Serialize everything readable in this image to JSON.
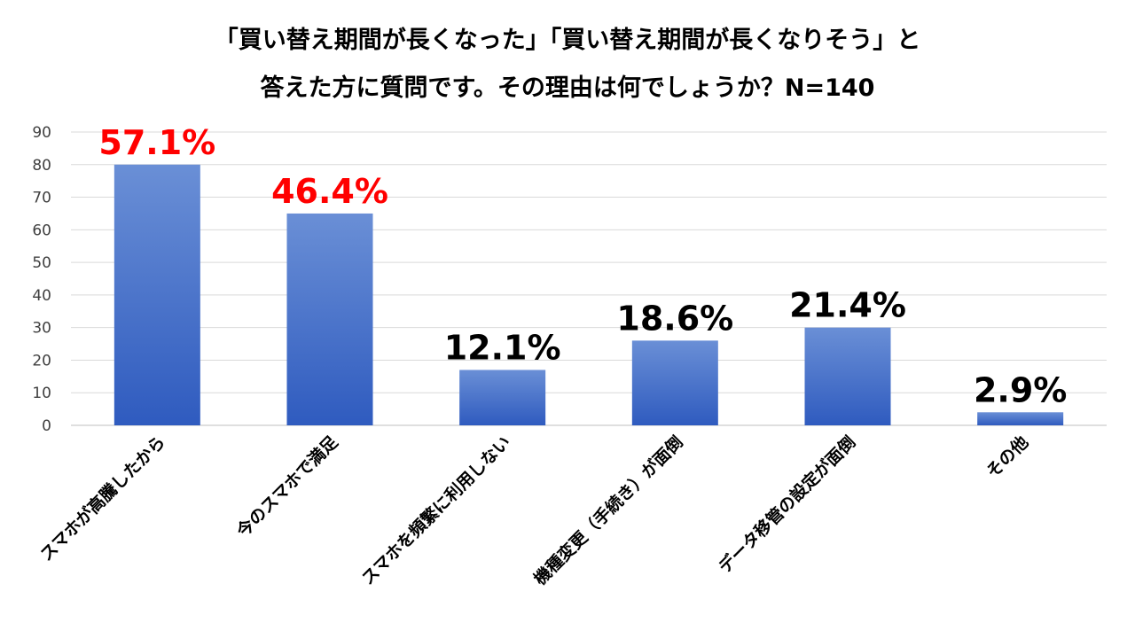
{
  "chart_data": {
    "type": "bar",
    "title_lines": [
      "「買い替え期間が長くなった」「買い替え期間が長くなりそう」と",
      "答えた方に質問です。その理由は何でしょうか？N=140"
    ],
    "categories": [
      "スマホが高騰したから",
      "今のスマホで満足",
      "スマホを頻繁に利用しない",
      "機種変更（手続き）が面倒",
      "データ移管の設定が面倒",
      "その他"
    ],
    "values": [
      80,
      65,
      17,
      26,
      30,
      4
    ],
    "data_labels": [
      "57.1%",
      "46.4%",
      "12.1%",
      "18.6%",
      "21.4%",
      "2.9%"
    ],
    "label_colors": [
      "#ff0000",
      "#ff0000",
      "#000000",
      "#000000",
      "#000000",
      "#000000"
    ],
    "y_ticks": [
      "0",
      "10",
      "20",
      "30",
      "40",
      "50",
      "60",
      "70",
      "80",
      "90"
    ],
    "ylim": [
      0,
      90
    ],
    "grid": true,
    "bar_color_top": "#6a8fd6",
    "bar_color_bottom": "#2f5bbf",
    "xlabel": "",
    "ylabel": ""
  }
}
